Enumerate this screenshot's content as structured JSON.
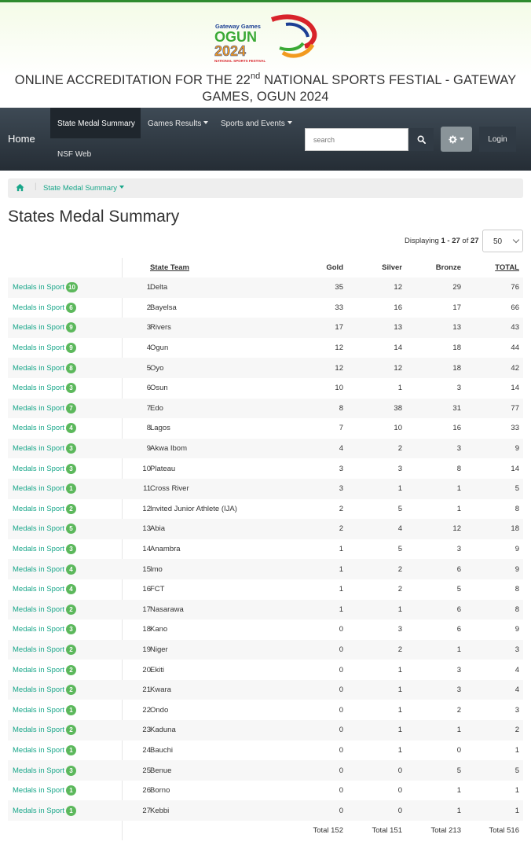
{
  "header": {
    "logo": {
      "line1": "Gateway Games",
      "line2": "OGUN",
      "line3": "2024",
      "line4": "NATIONAL SPORTS FESTIVAL"
    },
    "title_prefix": "ONLINE ACCREDITATION FOR THE 22",
    "title_sup": "nd",
    "title_suffix": " NATIONAL SPORTS FESTIAL - GATEWAY GAMES, OGUN 2024"
  },
  "navbar": {
    "brand": "Home",
    "items": [
      {
        "label": "State Medal Summary",
        "active": true
      },
      {
        "label": "Games Results",
        "dropdown": true
      },
      {
        "label": "Sports and Events",
        "dropdown": true
      },
      {
        "label": "NSF Web"
      }
    ],
    "search_placeholder": "search",
    "search_icon": "search-icon",
    "settings_icon": "gear-icon",
    "login_label": "Login"
  },
  "breadcrumb": {
    "home_icon": "home-icon",
    "current": "State Medal Summary"
  },
  "page_title": "States Medal Summary",
  "pagination": {
    "prefix": "Displaying ",
    "range": "1 - 27",
    "of": " of ",
    "total": "27",
    "page_size": "50"
  },
  "table": {
    "headers": {
      "team": "State Team",
      "gold": "Gold",
      "silver": "Silver",
      "bronze": "Bronze",
      "total": "TOTAL"
    },
    "link_label": "Medals in Sport",
    "rows": [
      {
        "sports": "10",
        "rank": "1",
        "team": "Delta",
        "gold": "35",
        "silver": "12",
        "bronze": "29",
        "total": "76"
      },
      {
        "sports": "6",
        "rank": "2",
        "team": "Bayelsa",
        "gold": "33",
        "silver": "16",
        "bronze": "17",
        "total": "66"
      },
      {
        "sports": "9",
        "rank": "3",
        "team": "Rivers",
        "gold": "17",
        "silver": "13",
        "bronze": "13",
        "total": "43"
      },
      {
        "sports": "9",
        "rank": "4",
        "team": "Ogun",
        "gold": "12",
        "silver": "14",
        "bronze": "18",
        "total": "44"
      },
      {
        "sports": "8",
        "rank": "5",
        "team": "Oyo",
        "gold": "12",
        "silver": "12",
        "bronze": "18",
        "total": "42"
      },
      {
        "sports": "3",
        "rank": "6",
        "team": "Osun",
        "gold": "10",
        "silver": "1",
        "bronze": "3",
        "total": "14"
      },
      {
        "sports": "7",
        "rank": "7",
        "team": "Edo",
        "gold": "8",
        "silver": "38",
        "bronze": "31",
        "total": "77"
      },
      {
        "sports": "4",
        "rank": "8",
        "team": "Lagos",
        "gold": "7",
        "silver": "10",
        "bronze": "16",
        "total": "33"
      },
      {
        "sports": "3",
        "rank": "9",
        "team": "Akwa Ibom",
        "gold": "4",
        "silver": "2",
        "bronze": "3",
        "total": "9"
      },
      {
        "sports": "3",
        "rank": "10",
        "team": "Plateau",
        "gold": "3",
        "silver": "3",
        "bronze": "8",
        "total": "14"
      },
      {
        "sports": "1",
        "rank": "11",
        "team": "Cross River",
        "gold": "3",
        "silver": "1",
        "bronze": "1",
        "total": "5"
      },
      {
        "sports": "2",
        "rank": "12",
        "team": "Invited Junior Athlete (IJA)",
        "gold": "2",
        "silver": "5",
        "bronze": "1",
        "total": "8"
      },
      {
        "sports": "5",
        "rank": "13",
        "team": "Abia",
        "gold": "2",
        "silver": "4",
        "bronze": "12",
        "total": "18"
      },
      {
        "sports": "3",
        "rank": "14",
        "team": "Anambra",
        "gold": "1",
        "silver": "5",
        "bronze": "3",
        "total": "9"
      },
      {
        "sports": "4",
        "rank": "15",
        "team": "Imo",
        "gold": "1",
        "silver": "2",
        "bronze": "6",
        "total": "9"
      },
      {
        "sports": "4",
        "rank": "16",
        "team": "FCT",
        "gold": "1",
        "silver": "2",
        "bronze": "5",
        "total": "8"
      },
      {
        "sports": "2",
        "rank": "17",
        "team": "Nasarawa",
        "gold": "1",
        "silver": "1",
        "bronze": "6",
        "total": "8"
      },
      {
        "sports": "3",
        "rank": "18",
        "team": "Kano",
        "gold": "0",
        "silver": "3",
        "bronze": "6",
        "total": "9"
      },
      {
        "sports": "2",
        "rank": "19",
        "team": "Niger",
        "gold": "0",
        "silver": "2",
        "bronze": "1",
        "total": "3"
      },
      {
        "sports": "2",
        "rank": "20",
        "team": "Ekiti",
        "gold": "0",
        "silver": "1",
        "bronze": "3",
        "total": "4"
      },
      {
        "sports": "2",
        "rank": "21",
        "team": "Kwara",
        "gold": "0",
        "silver": "1",
        "bronze": "3",
        "total": "4"
      },
      {
        "sports": "1",
        "rank": "22",
        "team": "Ondo",
        "gold": "0",
        "silver": "1",
        "bronze": "2",
        "total": "3"
      },
      {
        "sports": "2",
        "rank": "23",
        "team": "Kaduna",
        "gold": "0",
        "silver": "1",
        "bronze": "1",
        "total": "2"
      },
      {
        "sports": "1",
        "rank": "24",
        "team": "Bauchi",
        "gold": "0",
        "silver": "1",
        "bronze": "0",
        "total": "1"
      },
      {
        "sports": "3",
        "rank": "25",
        "team": "Benue",
        "gold": "0",
        "silver": "0",
        "bronze": "5",
        "total": "5"
      },
      {
        "sports": "1",
        "rank": "26",
        "team": "Borno",
        "gold": "0",
        "silver": "0",
        "bronze": "1",
        "total": "1"
      },
      {
        "sports": "1",
        "rank": "27",
        "team": "Kebbi",
        "gold": "0",
        "silver": "0",
        "bronze": "1",
        "total": "1"
      }
    ],
    "footer": {
      "gold": "Total 152",
      "silver": "Total 151",
      "bronze": "Total 213",
      "total": "Total 516"
    }
  },
  "colors": {
    "accent": "#18a689",
    "badge": "#5cb85c",
    "navbar": "#2d363f",
    "header_border": "#2e8b2e"
  }
}
